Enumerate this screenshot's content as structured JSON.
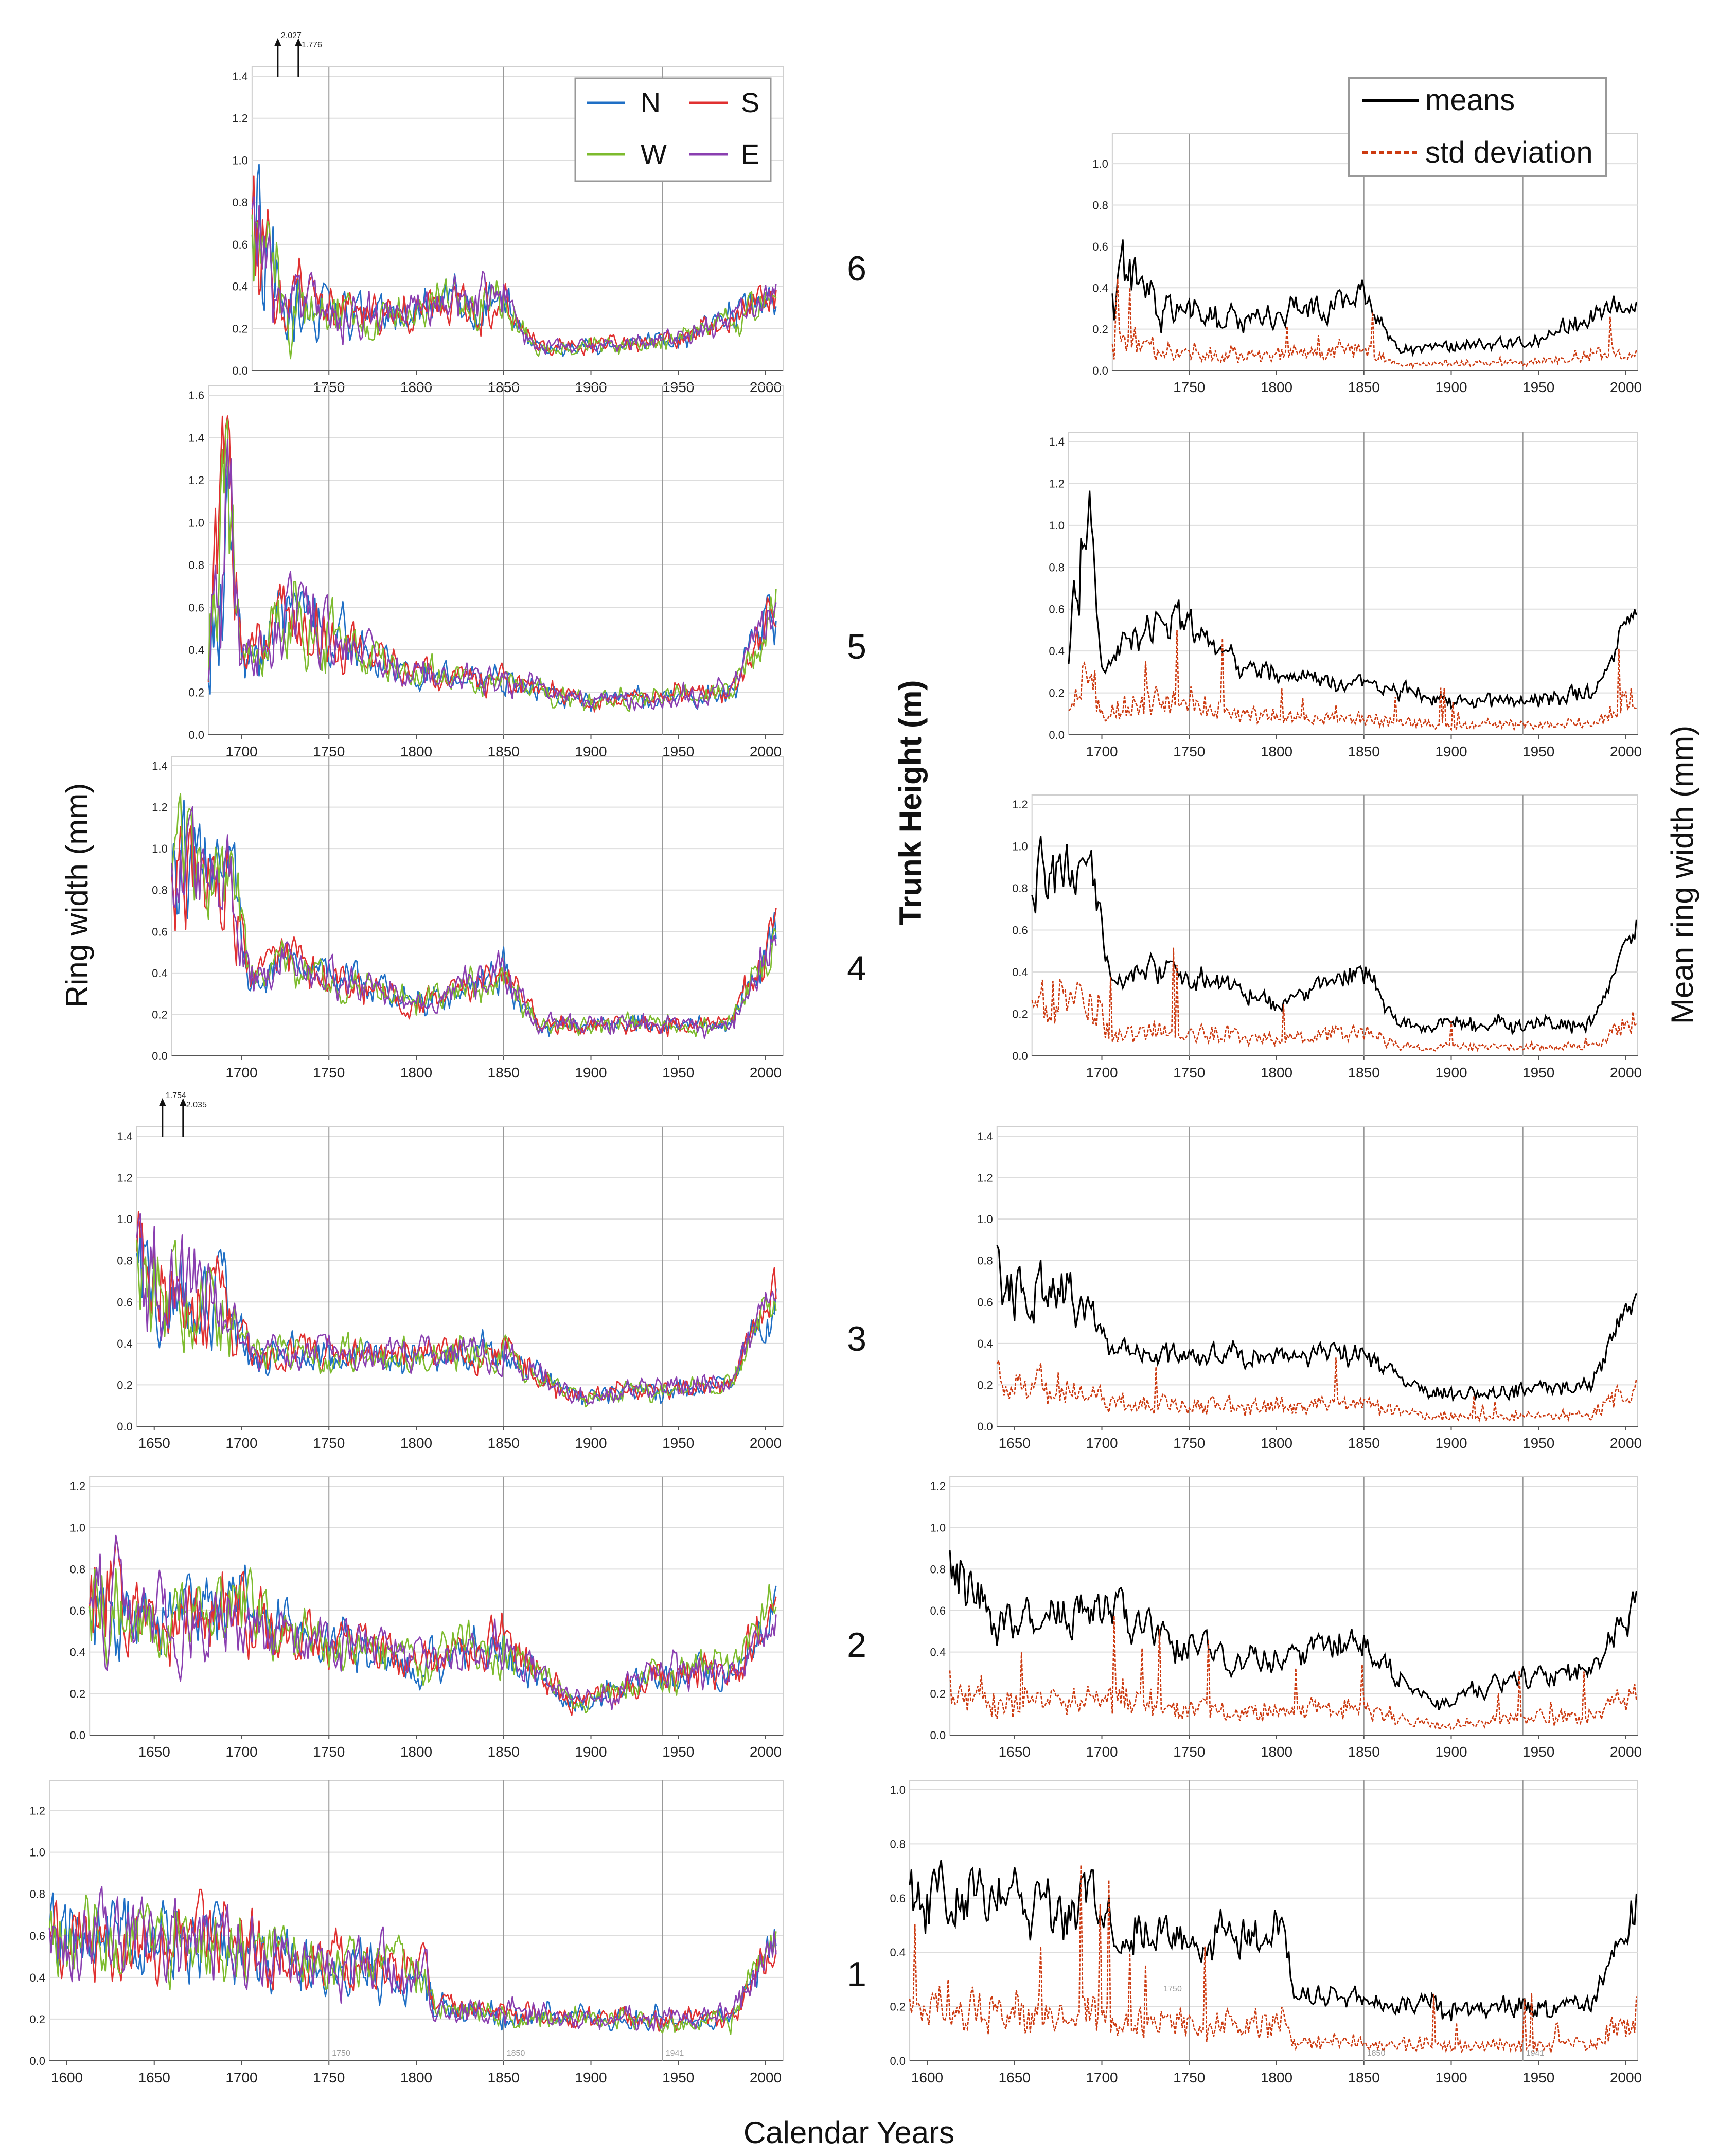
{
  "chart_data": {
    "type": "line",
    "x_axis_title": "Calendar Years",
    "left_y_axis_title": "Ring  width  (mm)",
    "middle_y_axis_title": "Trunk  Height  (m)",
    "right_y_axis_title": "Mean  ring  width  (mm)",
    "left_legend": [
      {
        "name": "N",
        "color": "#1f6fc5"
      },
      {
        "name": "S",
        "color": "#e03030"
      },
      {
        "name": "W",
        "color": "#7dbb2e"
      },
      {
        "name": "E",
        "color": "#8a3fb0"
      }
    ],
    "right_legend": [
      {
        "name": "means",
        "color": "#000000"
      },
      {
        "name": "std deviation",
        "color": "#cc3a10"
      }
    ],
    "panels": [
      {
        "height_label": "6",
        "xlim": [
          1706,
          2006
        ],
        "left_ylim": [
          0,
          1.4
        ],
        "left_yticks": [
          "0.0",
          "0.2",
          "0.4",
          "0.6",
          "0.8",
          "1.0",
          "1.2",
          "1.4"
        ],
        "right_ylim": [
          0,
          1.1
        ],
        "right_yticks": [
          "0.0",
          "0.2",
          "0.4",
          "0.6",
          "0.8",
          "1.0"
        ],
        "xticks": [
          "1750",
          "1800",
          "1850",
          "1900",
          "1950",
          "2000"
        ],
        "annotations": [
          "2.027",
          "1.776"
        ],
        "segments": [
          [
            1706,
            0.55,
            0.9
          ],
          [
            1730,
            0.3,
            0.5
          ],
          [
            1780,
            0.25,
            0.3
          ],
          [
            1850,
            0.35,
            0.3
          ],
          [
            1870,
            0.1,
            0.2
          ],
          [
            1950,
            0.15,
            0.2
          ],
          [
            2006,
            0.35,
            0.25
          ]
        ]
      },
      {
        "height_label": "5",
        "xlim": [
          1681,
          2006
        ],
        "left_ylim": [
          0,
          1.6
        ],
        "left_yticks": [
          "0.0",
          "0.2",
          "0.4",
          "0.6",
          "0.8",
          "1.0",
          "1.2",
          "1.4",
          "1.6"
        ],
        "right_ylim": [
          0,
          1.4
        ],
        "right_yticks": [
          "0.0",
          "0.2",
          "0.4",
          "0.6",
          "0.8",
          "1.0",
          "1.2",
          "1.4"
        ],
        "xticks": [
          "1700",
          "1750",
          "1800",
          "1850",
          "1900",
          "1950",
          "2000"
        ],
        "annotations": [],
        "segments": [
          [
            1681,
            0.4,
            0.5
          ],
          [
            1692,
            1.2,
            0.5
          ],
          [
            1700,
            0.3,
            0.3
          ],
          [
            1730,
            0.6,
            0.3
          ],
          [
            1790,
            0.3,
            0.2
          ],
          [
            1850,
            0.25,
            0.2
          ],
          [
            1900,
            0.15,
            0.2
          ],
          [
            1980,
            0.2,
            0.2
          ],
          [
            2006,
            0.6,
            0.2
          ]
        ]
      },
      {
        "height_label": "4",
        "xlim": [
          1660,
          2006
        ],
        "left_ylim": [
          0,
          1.4
        ],
        "left_yticks": [
          "0.0",
          "0.2",
          "0.4",
          "0.6",
          "0.8",
          "1.0",
          "1.2",
          "1.4"
        ],
        "right_ylim": [
          0,
          1.2
        ],
        "right_yticks": [
          "0.0",
          "0.2",
          "0.4",
          "0.6",
          "0.8",
          "1.0",
          "1.2"
        ],
        "xticks": [
          "1700",
          "1750",
          "1800",
          "1850",
          "1900",
          "1950",
          "2000"
        ],
        "annotations": [],
        "segments": [
          [
            1660,
            0.9,
            0.3
          ],
          [
            1695,
            0.8,
            0.3
          ],
          [
            1705,
            0.35,
            0.2
          ],
          [
            1725,
            0.45,
            0.2
          ],
          [
            1800,
            0.25,
            0.2
          ],
          [
            1850,
            0.4,
            0.2
          ],
          [
            1870,
            0.15,
            0.2
          ],
          [
            1980,
            0.15,
            0.2
          ],
          [
            2006,
            0.6,
            0.2
          ]
        ]
      },
      {
        "height_label": "3",
        "xlim": [
          1640,
          2006
        ],
        "left_ylim": [
          0,
          1.4
        ],
        "left_yticks": [
          "0.0",
          "0.2",
          "0.4",
          "0.6",
          "0.8",
          "1.0",
          "1.2",
          "1.4"
        ],
        "right_ylim": [
          0,
          1.4
        ],
        "right_yticks": [
          "0.0",
          "0.2",
          "0.4",
          "0.6",
          "0.8",
          "1.0",
          "1.2",
          "1.4"
        ],
        "xticks": [
          "1650",
          "1700",
          "1750",
          "1800",
          "1850",
          "1900",
          "1950",
          "2000"
        ],
        "annotations": [
          "1.754",
          "2.035"
        ],
        "segments": [
          [
            1640,
            0.7,
            0.4
          ],
          [
            1690,
            0.6,
            0.3
          ],
          [
            1705,
            0.35,
            0.2
          ],
          [
            1800,
            0.35,
            0.2
          ],
          [
            1850,
            0.35,
            0.2
          ],
          [
            1890,
            0.15,
            0.2
          ],
          [
            1980,
            0.2,
            0.2
          ],
          [
            2006,
            0.65,
            0.2
          ]
        ]
      },
      {
        "height_label": "2",
        "xlim": [
          1613,
          2006
        ],
        "left_ylim": [
          0,
          1.2
        ],
        "left_yticks": [
          "0.0",
          "0.2",
          "0.4",
          "0.6",
          "0.8",
          "1.0",
          "1.2"
        ],
        "right_ylim": [
          0,
          1.2
        ],
        "right_yticks": [
          "0.0",
          "0.2",
          "0.4",
          "0.6",
          "0.8",
          "1.0",
          "1.2"
        ],
        "xticks": [
          "1650",
          "1700",
          "1750",
          "1800",
          "1850",
          "1900",
          "1950",
          "2000"
        ],
        "annotations": [],
        "segments": [
          [
            1613,
            0.75,
            0.4
          ],
          [
            1640,
            0.55,
            0.3
          ],
          [
            1700,
            0.6,
            0.3
          ],
          [
            1740,
            0.45,
            0.25
          ],
          [
            1800,
            0.35,
            0.25
          ],
          [
            1850,
            0.45,
            0.25
          ],
          [
            1890,
            0.15,
            0.2
          ],
          [
            1950,
            0.3,
            0.3
          ],
          [
            1980,
            0.3,
            0.2
          ],
          [
            2006,
            0.65,
            0.2
          ]
        ]
      },
      {
        "height_label": "1",
        "xlim": [
          1590,
          2006
        ],
        "left_ylim": [
          0,
          1.3
        ],
        "left_yticks": [
          "0.0",
          "0.2",
          "0.4",
          "0.6",
          "0.8",
          "1.0",
          "1.2"
        ],
        "right_ylim": [
          0,
          1.0
        ],
        "right_yticks": [
          "0.0",
          "0.2",
          "0.4",
          "0.6",
          "0.8",
          "1.0"
        ],
        "xticks": [
          "1600",
          "1650",
          "1700",
          "1750",
          "1800",
          "1850",
          "1900",
          "1950",
          "2000"
        ],
        "annotations": [
          "1750",
          "1850",
          "1941"
        ],
        "segments": [
          [
            1590,
            0.6,
            0.3
          ],
          [
            1700,
            0.55,
            0.3
          ],
          [
            1750,
            0.45,
            0.25
          ],
          [
            1805,
            0.45,
            0.25
          ],
          [
            1810,
            0.25,
            0.2
          ],
          [
            1900,
            0.2,
            0.2
          ],
          [
            1980,
            0.2,
            0.2
          ],
          [
            2006,
            0.6,
            0.2
          ]
        ]
      }
    ]
  }
}
